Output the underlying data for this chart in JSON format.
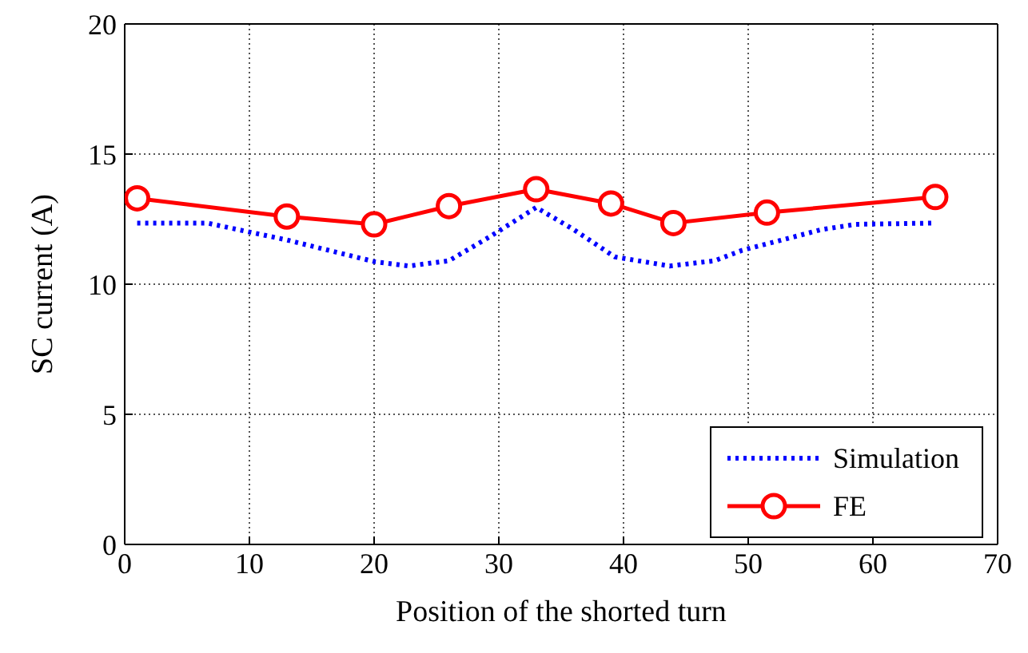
{
  "chart_data": {
    "type": "line",
    "xlabel": "Position of the shorted turn",
    "ylabel": "SC current (A)",
    "xlim": [
      0,
      70
    ],
    "xticks": [
      0,
      10,
      20,
      30,
      40,
      50,
      60,
      70
    ],
    "ylim": [
      0,
      20
    ],
    "yticks": [
      0,
      5,
      10,
      15,
      20
    ],
    "grid": true,
    "legend": "bottom right",
    "series": [
      {
        "name": "Simulation",
        "color": "#0000ff",
        "line_style": "dotted",
        "marker": "none",
        "x": [
          1,
          6.6,
          13,
          20,
          22.8,
          26,
          29.2,
          33,
          36,
          39.3,
          43.7,
          47.3,
          49.5,
          55.9,
          58.6,
          65
        ],
        "values": [
          12.35,
          12.35,
          11.7,
          10.87,
          10.7,
          10.9,
          11.8,
          12.95,
          12.1,
          11.05,
          10.7,
          10.9,
          11.3,
          12.1,
          12.3,
          12.35
        ]
      },
      {
        "name": "FE",
        "color": "#ff0000",
        "line_style": "solid",
        "marker": "circle",
        "x": [
          1,
          13,
          20,
          26,
          33,
          39,
          44,
          51.5,
          65
        ],
        "values": [
          13.3,
          12.6,
          12.3,
          13.0,
          13.65,
          13.1,
          12.35,
          12.75,
          13.35
        ]
      }
    ]
  }
}
